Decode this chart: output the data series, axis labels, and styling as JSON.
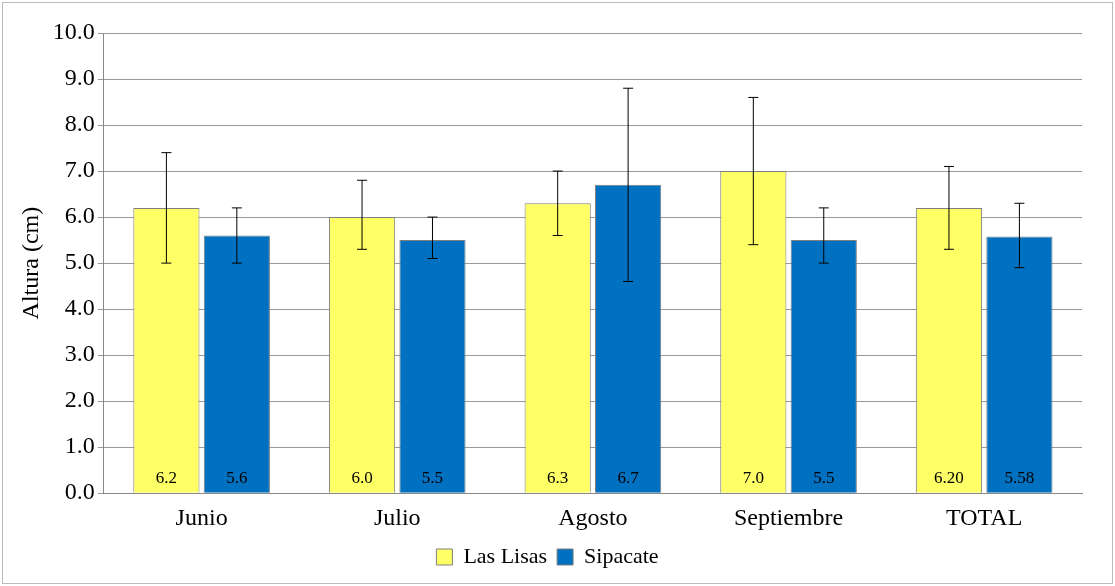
{
  "chart_data": {
    "type": "bar",
    "ylabel": "Altura (cm)",
    "categories": [
      "Junio",
      "Julio",
      "Agosto",
      "Septiembre",
      "TOTAL"
    ],
    "series": [
      {
        "name": "Las Lisas",
        "color": "#ffff66",
        "values": [
          6.2,
          6.0,
          6.3,
          7.0,
          6.2
        ],
        "value_labels": [
          "6.2",
          "6.0",
          "6.3",
          "7.0",
          "6.20"
        ],
        "errors": [
          [
            5.0,
            7.4
          ],
          [
            5.3,
            6.8
          ],
          [
            5.6,
            7.0
          ],
          [
            5.4,
            8.6
          ],
          [
            5.3,
            7.1
          ]
        ]
      },
      {
        "name": "Sipacate",
        "color": "#0070c0",
        "values": [
          5.6,
          5.5,
          6.7,
          5.5,
          5.58
        ],
        "value_labels": [
          "5.6",
          "5.5",
          "6.7",
          "5.5",
          "5.58"
        ],
        "errors": [
          [
            5.0,
            6.2
          ],
          [
            5.1,
            6.0
          ],
          [
            4.6,
            8.8
          ],
          [
            5.0,
            6.2
          ],
          [
            4.9,
            6.3
          ]
        ]
      }
    ],
    "ylim": [
      0,
      10
    ],
    "yticks": [
      {
        "value": 0,
        "label": "0.0"
      },
      {
        "value": 1,
        "label": "1.0"
      },
      {
        "value": 2,
        "label": "2.0"
      },
      {
        "value": 3,
        "label": "3.0"
      },
      {
        "value": 4,
        "label": "4.0"
      },
      {
        "value": 5,
        "label": "5.0"
      },
      {
        "value": 6,
        "label": "6.0"
      },
      {
        "value": 7,
        "label": "7.0"
      },
      {
        "value": 8,
        "label": "8.0"
      },
      {
        "value": 9,
        "label": "9.0"
      },
      {
        "value": 10,
        "label": "10.0"
      }
    ],
    "grid": "y",
    "legend": "bottom"
  }
}
